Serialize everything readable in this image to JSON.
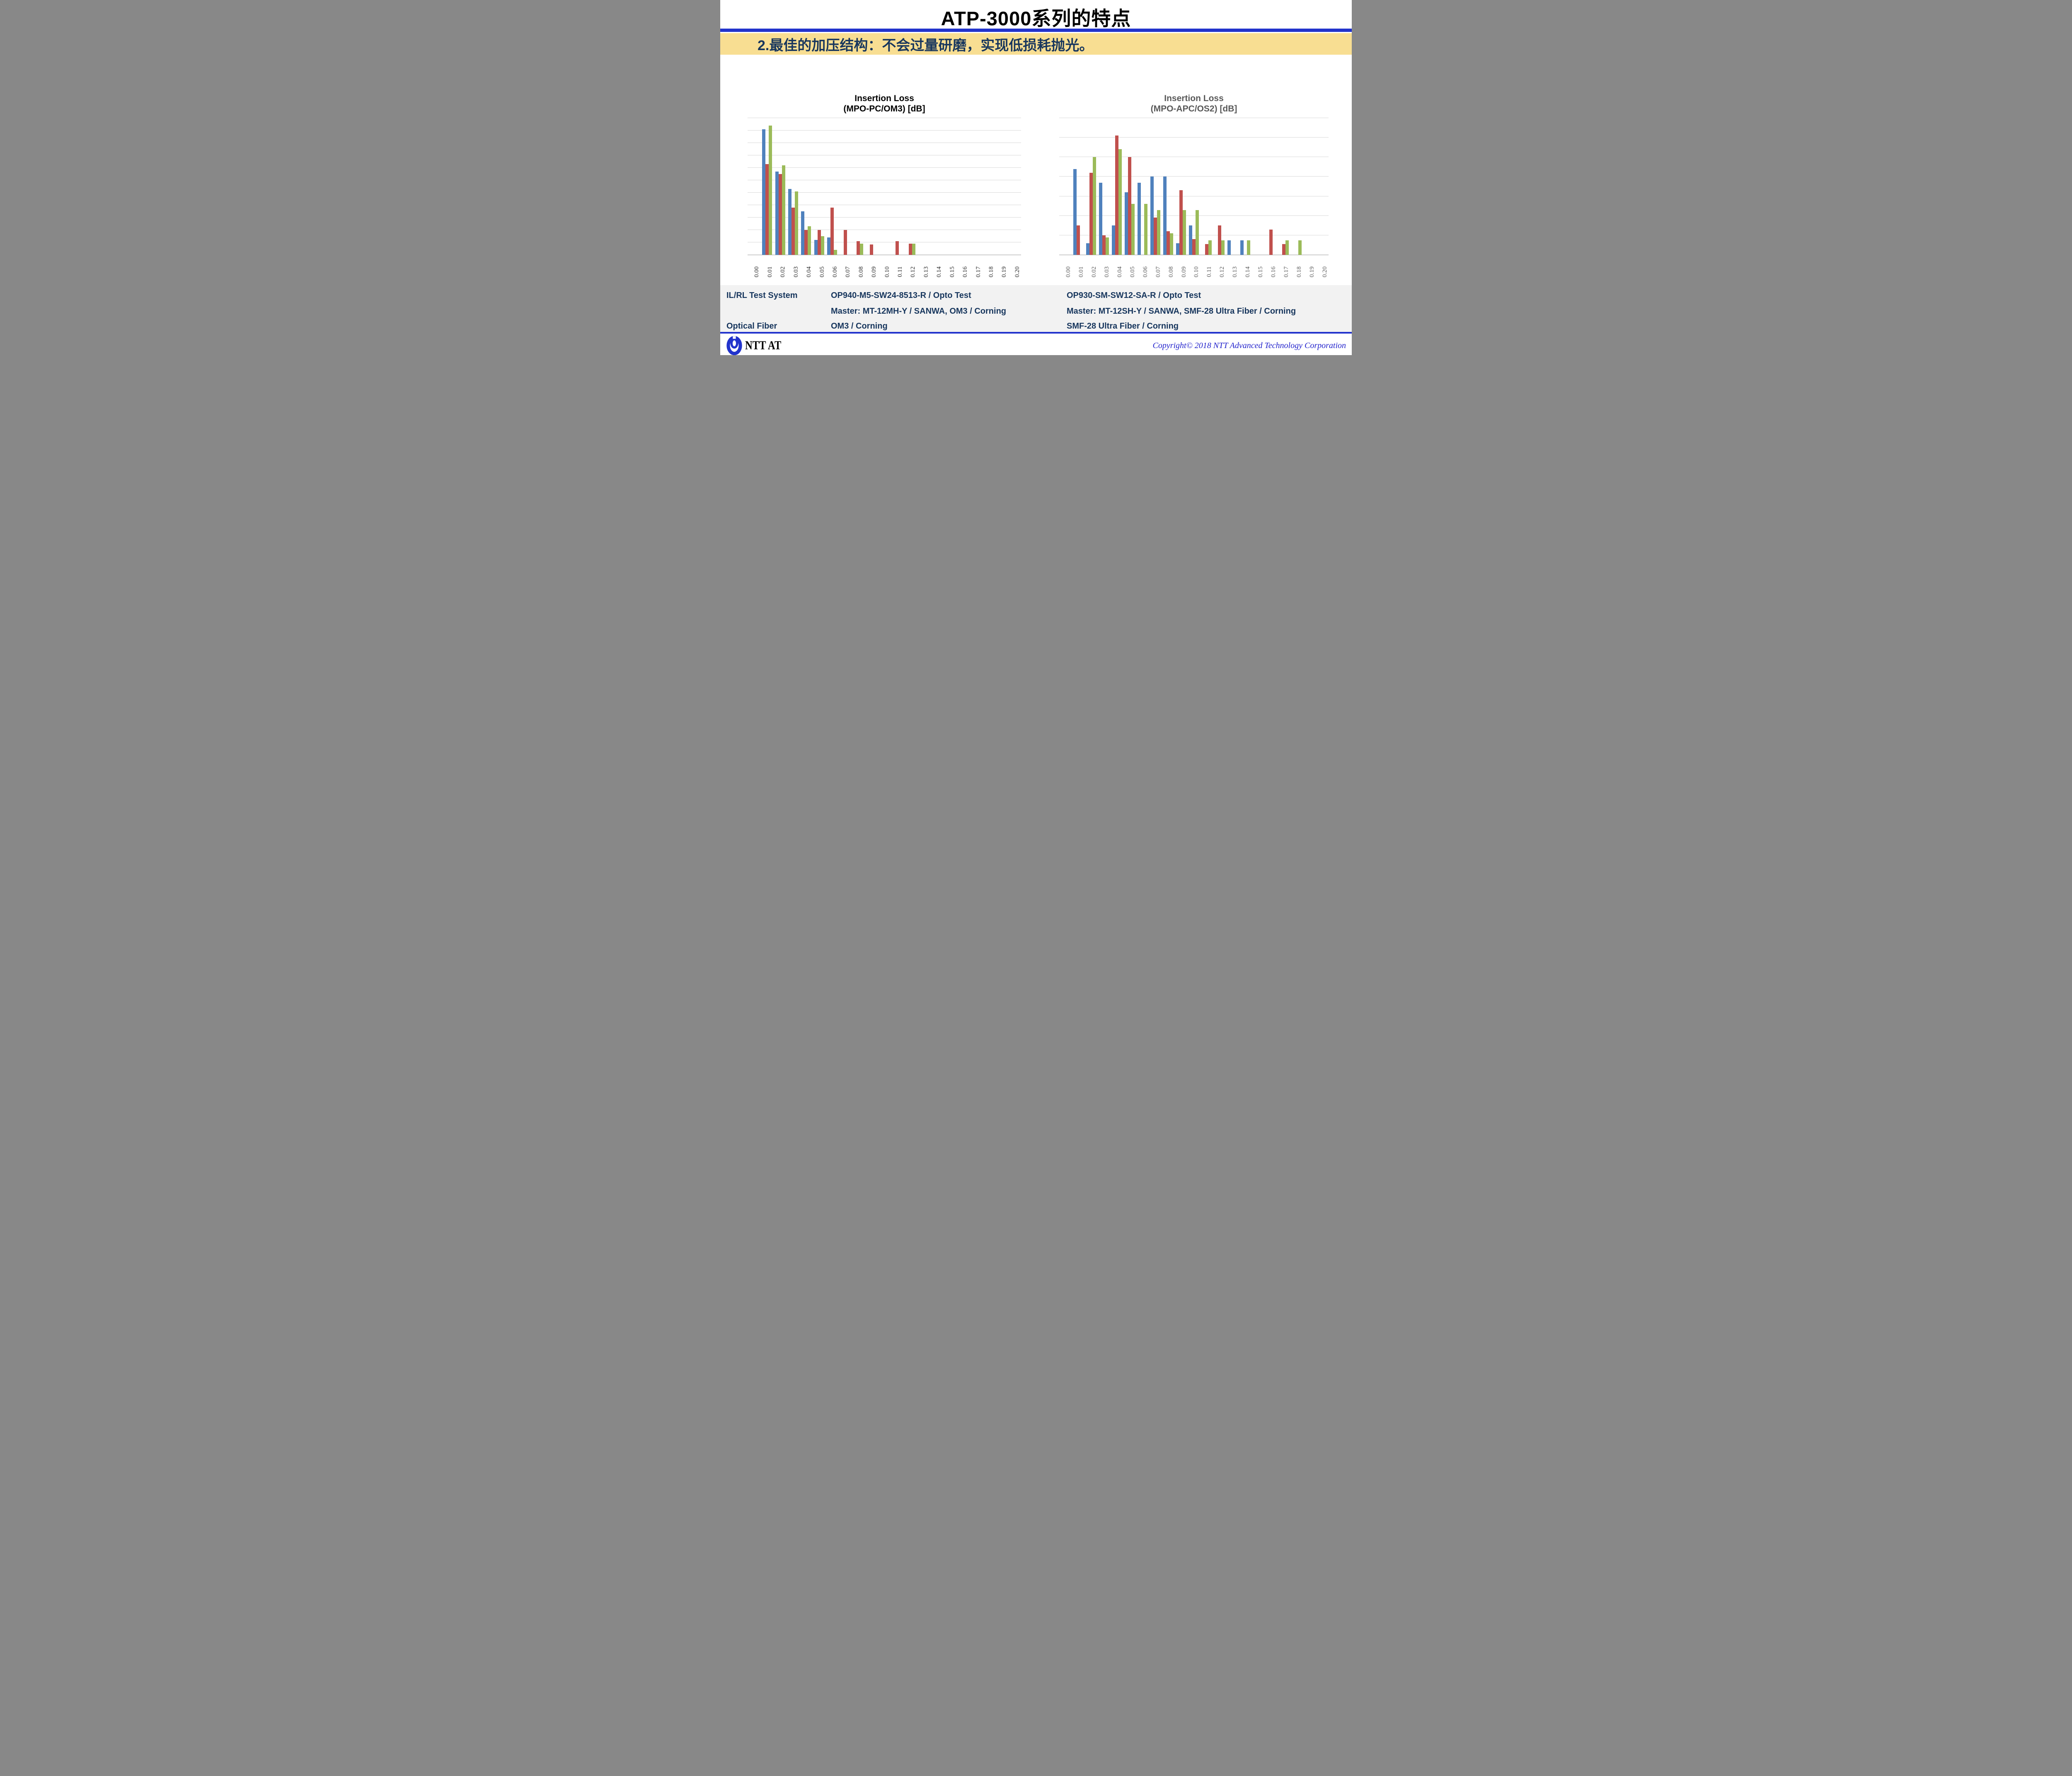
{
  "slide": {
    "title": "ATP-3000系列的特点",
    "subtitle": "2.最佳的加压结构：不会过量研磨，实现低损耗抛光。"
  },
  "colors": {
    "accent_blue_line": "#2233CC",
    "subtitle_band_yellow": "#F8DE92",
    "navy_text": "#17365D",
    "spec_band_gray": "#F2F2F2",
    "bar_blue": "#4F81BD",
    "bar_red": "#C0504D",
    "bar_green": "#9BBB59",
    "gridline": "#D9D9D9",
    "axis_line": "#BFBFBF",
    "right_chart_text": "#595959",
    "copyright_blue": "#2222CC"
  },
  "chart_data": [
    {
      "type": "bar",
      "title_line1": "Insertion Loss",
      "title_line2": "(MPO-PC/OM3) [dB]",
      "title": "Insertion Loss (MPO-PC/OM3) [dB]",
      "xlabel": "Insertion Loss [dB]",
      "ylabel": "",
      "note": "y-axis has no tick labels; values estimated in gridline units (1 unit = 1 gridline interval)",
      "ylim": [
        0,
        11
      ],
      "gridline_intervals": 11,
      "grid": true,
      "legend": "none",
      "categories": [
        "0.00",
        "0.01",
        "0.02",
        "0.03",
        "0.04",
        "0.05",
        "0.06",
        "0.07",
        "0.08",
        "0.09",
        "0.10",
        "0.11",
        "0.12",
        "0.13",
        "0.14",
        "0.15",
        "0.16",
        "0.17",
        "0.18",
        "0.19",
        "0.20"
      ],
      "series": [
        {
          "name": "series-blue",
          "color": "#4F81BD",
          "values": [
            0,
            10.1,
            6.7,
            5.3,
            3.5,
            1.2,
            1.4,
            0,
            0,
            0,
            0,
            0,
            0,
            0,
            0,
            0,
            0,
            0,
            0,
            0,
            0
          ]
        },
        {
          "name": "series-red",
          "color": "#C0504D",
          "values": [
            0,
            7.3,
            6.5,
            3.8,
            2.0,
            2.0,
            3.8,
            2.0,
            1.1,
            0.85,
            0,
            1.1,
            0.9,
            0,
            0,
            0,
            0,
            0,
            0,
            0,
            0
          ]
        },
        {
          "name": "series-green",
          "color": "#9BBB59",
          "values": [
            0,
            10.4,
            7.2,
            5.1,
            2.3,
            1.5,
            0.4,
            0,
            0.9,
            0,
            0,
            0,
            0.9,
            0,
            0,
            0,
            0,
            0,
            0,
            0,
            0
          ]
        }
      ]
    },
    {
      "type": "bar",
      "title_line1": "Insertion Loss",
      "title_line2": "(MPO-APC/OS2) [dB]",
      "title": "Insertion Loss (MPO-APC/OS2) [dB]",
      "xlabel": "Insertion Loss [dB]",
      "ylabel": "",
      "note": "y-axis has no tick labels; values estimated in gridline units (1 unit = 1 gridline interval)",
      "ylim": [
        0,
        7
      ],
      "gridline_intervals": 7,
      "grid": true,
      "legend": "none",
      "categories": [
        "0.00",
        "0.01",
        "0.02",
        "0.03",
        "0.04",
        "0.05",
        "0.06",
        "0.07",
        "0.08",
        "0.09",
        "0.10",
        "0.11",
        "0.12",
        "0.13",
        "0.14",
        "0.15",
        "0.16",
        "0.17",
        "0.18",
        "0.19",
        "0.20"
      ],
      "series": [
        {
          "name": "series-blue",
          "color": "#4F81BD",
          "values": [
            0,
            4.4,
            0.6,
            3.7,
            1.5,
            3.2,
            3.7,
            4.0,
            4.0,
            0.6,
            1.5,
            0,
            0,
            0.75,
            0.75,
            0,
            0,
            0,
            0,
            0,
            0
          ]
        },
        {
          "name": "series-red",
          "color": "#C0504D",
          "values": [
            0,
            1.5,
            4.2,
            1.0,
            6.1,
            5.0,
            0,
            1.9,
            1.2,
            3.3,
            0.8,
            0.55,
            1.5,
            0,
            0,
            0,
            1.3,
            0.55,
            0,
            0,
            0
          ]
        },
        {
          "name": "series-green",
          "color": "#9BBB59",
          "values": [
            0,
            0,
            5.0,
            0.9,
            5.4,
            2.6,
            2.6,
            2.3,
            1.1,
            2.3,
            2.3,
            0.75,
            0.75,
            0,
            0.75,
            0,
            0,
            0.75,
            0.75,
            0,
            0
          ]
        }
      ]
    }
  ],
  "table": {
    "rows": [
      {
        "label": "IL/RL Test System",
        "left": [
          "OP940-M5-SW24-8513-R / Opto Test",
          "Master: MT-12MH-Y / SANWA, OM3 / Corning"
        ],
        "right": [
          "OP930-SM-SW12-SA-R / Opto Test",
          "Master: MT-12SH-Y / SANWA, SMF-28 Ultra Fiber / Corning"
        ]
      },
      {
        "label": "Optical Fiber",
        "left": [
          "OM3 / Corning"
        ],
        "right": [
          "SMF-28 Ultra Fiber / Corning"
        ]
      }
    ]
  },
  "footer": {
    "logo_text": "NTT AT",
    "copyright": "Copyright© 2018 NTT Advanced Technology Corporation"
  }
}
